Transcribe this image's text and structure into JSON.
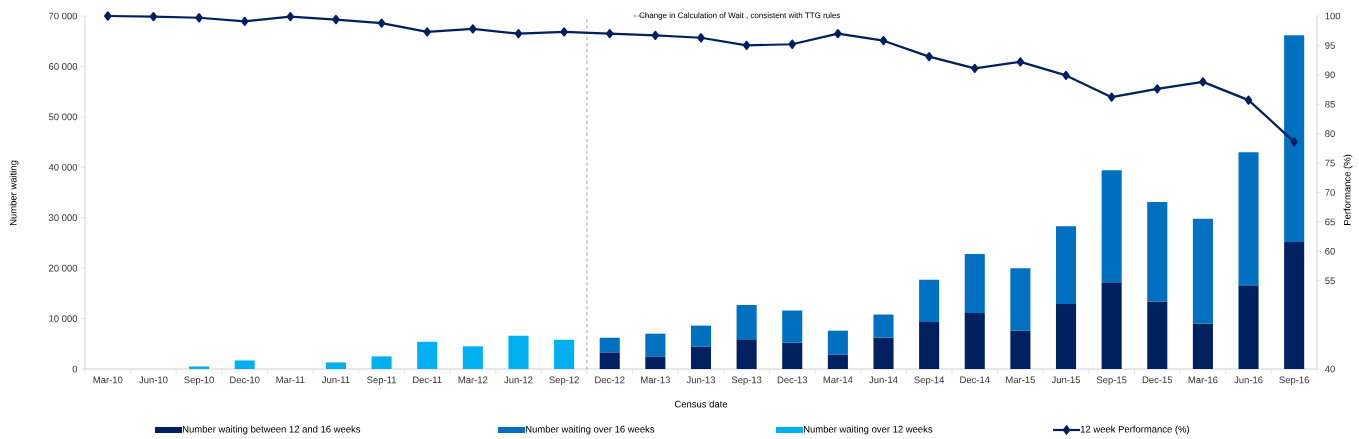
{
  "chart_data": {
    "type": "bar",
    "stacked": true,
    "xlabel": "Census date",
    "ylabel": "Number waiting",
    "y2label": "Performance (%)",
    "categories": [
      "Mar-10",
      "Jun-10",
      "Sep-10",
      "Dec-10",
      "Mar-11",
      "Jun-11",
      "Sep-11",
      "Dec-11",
      "Mar-12",
      "Jun-12",
      "Sep-12",
      "Dec-12",
      "Mar-13",
      "Jun-13",
      "Sep-13",
      "Dec-13",
      "Mar-14",
      "Jun-14",
      "Sep-14",
      "Dec-14",
      "Mar-15",
      "Jun-15",
      "Sep-15",
      "Dec-15",
      "Mar-16",
      "Jun-16",
      "Sep-16"
    ],
    "series": [
      {
        "name": "Number waiting between 12 and 16 weeks",
        "color": "#002060",
        "values": [
          null,
          null,
          null,
          null,
          null,
          null,
          null,
          null,
          null,
          null,
          null,
          3300,
          2500,
          4400,
          5900,
          5200,
          2800,
          6200,
          9300,
          11100,
          7600,
          12900,
          17200,
          13400,
          9000,
          16600,
          25200
        ]
      },
      {
        "name": "Number waiting over 16 weeks",
        "color": "#0070c0",
        "values": [
          null,
          null,
          null,
          null,
          null,
          null,
          null,
          null,
          null,
          null,
          null,
          2900,
          4500,
          4200,
          6800,
          6400,
          4800,
          4600,
          8400,
          11700,
          12400,
          15400,
          22200,
          19700,
          20800,
          26400,
          41000
        ]
      },
      {
        "name": "Number waiting over 12 weeks",
        "color": "#00b0f0",
        "values": [
          null,
          null,
          500,
          1700,
          null,
          1300,
          2500,
          5400,
          4500,
          6600,
          5800,
          null,
          null,
          null,
          null,
          null,
          null,
          null,
          null,
          null,
          null,
          null,
          null,
          null,
          null,
          null,
          null
        ]
      },
      {
        "name": "12 week Performance (%)",
        "type": "line",
        "axis": "y2",
        "color": "#002060",
        "marker": "diamond",
        "values": [
          100.0,
          99.9,
          99.7,
          99.1,
          99.9,
          99.4,
          98.8,
          97.3,
          97.8,
          97.0,
          97.3,
          97.0,
          96.7,
          96.3,
          95.0,
          95.2,
          97.0,
          95.8,
          93.1,
          91.1,
          92.2,
          89.9,
          86.2,
          87.6,
          88.8,
          85.7,
          78.6
        ]
      }
    ],
    "ylim": [
      0,
      70000
    ],
    "yticks": [
      {
        "value": 0,
        "label": "0"
      },
      {
        "value": 10000,
        "label": "10 000"
      },
      {
        "value": 20000,
        "label": "20 000"
      },
      {
        "value": 30000,
        "label": "30 000"
      },
      {
        "value": 40000,
        "label": "40 000"
      },
      {
        "value": 50000,
        "label": "50 000"
      },
      {
        "value": 60000,
        "label": "60 000"
      },
      {
        "value": 70000,
        "label": "70 000"
      }
    ],
    "y2lim": [
      40,
      100
    ],
    "y2ticks": [
      40,
      55,
      60,
      65,
      70,
      75,
      80,
      85,
      90,
      95,
      100
    ],
    "annotations": [
      "Change in Calculation of Wait , consistent with TTG rules"
    ],
    "legend": "bottom"
  }
}
